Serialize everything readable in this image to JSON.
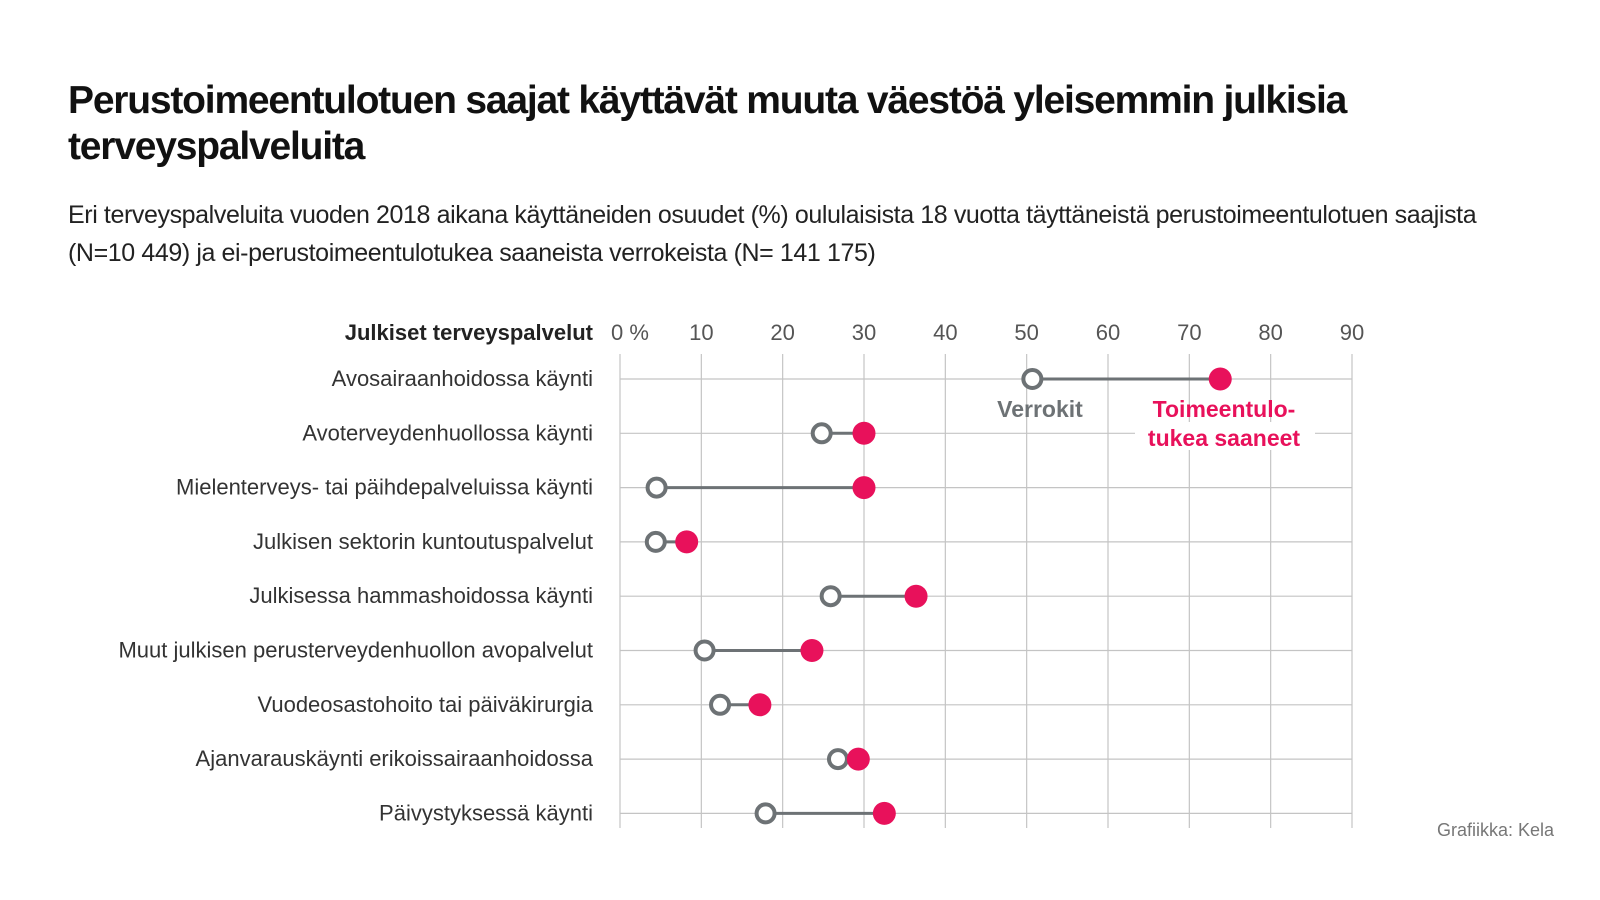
{
  "title": "Perustoimeentulotuen saajat käyttävät muuta väestöä yleisemmin julkisia terveyspalveluita",
  "subtitle": "Eri terveyspalveluita vuoden 2018 aikana käyttäneiden osuudet (%) oululaisista 18 vuotta täyttäneistä perustoimeentulotuen saajista (N=10 449) ja ei-perustoimeentulotukea saaneista verrokeista (N= 141 175)",
  "credit": "Grafiikka: Kela",
  "chart_data": {
    "type": "dumbbell",
    "category_header": "Julkiset terveyspalvelut",
    "xlim": [
      0,
      90
    ],
    "ticks": [
      0,
      10,
      20,
      30,
      40,
      50,
      60,
      70,
      80,
      90
    ],
    "tick_labels": [
      "0 %",
      "10",
      "20",
      "30",
      "40",
      "50",
      "60",
      "70",
      "80",
      "90"
    ],
    "categories": [
      "Avosairaanhoidossa käynti",
      "Avoterveydenhuollossa käynti",
      "Mielenterveys- tai päihdepalveluissa käynti",
      "Julkisen sektorin kuntoutuspalvelut",
      "Julkisessa hammashoidossa käynti",
      "Muut julkisen perusterveydenhuollon avopalvelut",
      "Vuodeosastohoito tai päiväkirurgia",
      "Ajanvarauskäynti erikoissairaanhoidossa",
      "Päivystyksessä käynti"
    ],
    "series": [
      {
        "name": "Verrokit",
        "color": "#6d7275",
        "values": [
          50.7,
          24.8,
          4.5,
          4.4,
          25.9,
          10.4,
          12.3,
          26.8,
          17.9
        ]
      },
      {
        "name": "Toimeentulotukea saaneet",
        "label_lines": [
          "Toimeentulo-",
          "tukea saaneet"
        ],
        "color": "#e8115b",
        "values": [
          73.8,
          30.0,
          30.0,
          8.2,
          36.4,
          23.6,
          17.2,
          29.3,
          32.5
        ]
      }
    ]
  }
}
